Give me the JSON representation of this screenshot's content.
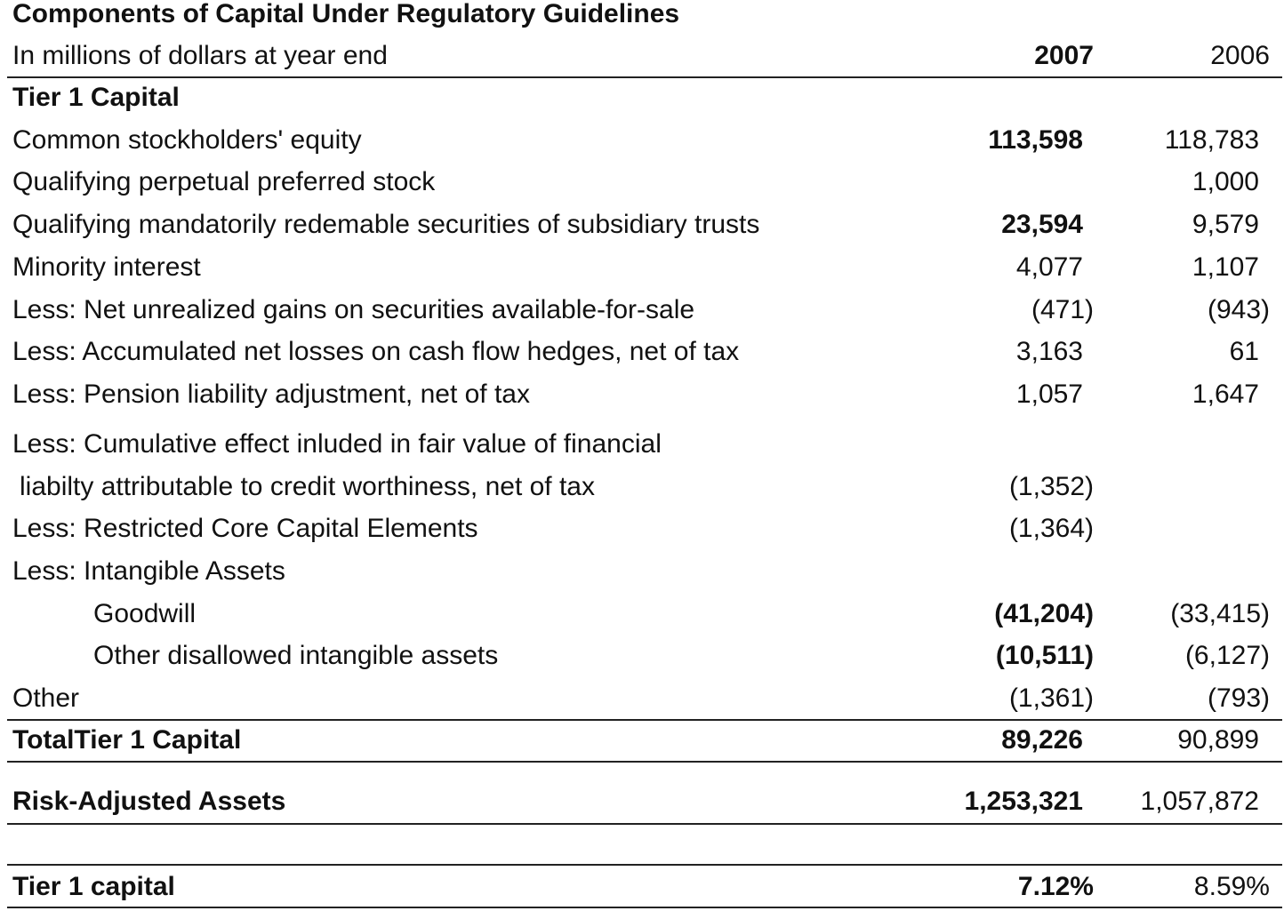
{
  "title": "Components of Capital Under Regulatory Guidelines",
  "subtitle": "In millions of dollars at year end",
  "columns": {
    "y2007": "2007",
    "y2006": "2006"
  },
  "tier1_header": "Tier 1 Capital",
  "rows": {
    "common_equity": {
      "label": "Common stockholders' equity",
      "v2007": "113,598",
      "v2006": "118,783"
    },
    "perpetual_preferred": {
      "label": "Qualifying perpetual preferred stock",
      "v2007": "",
      "v2006": "1,000"
    },
    "mandatorily_redeemable": {
      "label": "Qualifying mandatorily redemable securities of subsidiary trusts",
      "v2007": "23,594",
      "v2006": "9,579"
    },
    "minority_interest": {
      "label": "Minority interest",
      "v2007": "4,077",
      "v2006": "1,107"
    },
    "unrealized_gains": {
      "label": "Less: Net unrealized gains on securities available-for-sale",
      "v2007": "(471)",
      "v2006": "(943)"
    },
    "cash_flow_hedges": {
      "label": "Less: Accumulated net losses on cash flow hedges, net of tax",
      "v2007": "3,163",
      "v2006": "61"
    },
    "pension": {
      "label": "Less: Pension liability adjustment, net of tax",
      "v2007": "1,057",
      "v2006": "1,647"
    },
    "cumulative_effect": {
      "label_line1": "Less: Cumulative effect inluded in fair value of financial",
      "label_line2": "liabilty attributable to credit worthiness, net of tax",
      "v2007": "(1,352)",
      "v2006": ""
    },
    "restricted_core": {
      "label": "Less: Restricted Core Capital Elements",
      "v2007": "(1,364)",
      "v2006": ""
    },
    "intangible_header": {
      "label": "Less: Intangible Assets"
    },
    "goodwill": {
      "label": "Goodwill",
      "v2007": "(41,204)",
      "v2006": "(33,415)"
    },
    "other_intangibles": {
      "label": "Other disallowed intangible assets",
      "v2007": "(10,511)",
      "v2006": "(6,127)"
    },
    "other": {
      "label": "Other",
      "v2007": "(1,361)",
      "v2006": "(793)"
    },
    "total_tier1": {
      "label": "TotalTier 1 Capital",
      "v2007": "89,226",
      "v2006": "90,899"
    },
    "risk_adjusted": {
      "label": "Risk-Adjusted Assets",
      "v2007": "1,253,321",
      "v2006": "1,057,872"
    },
    "tier1_ratio": {
      "label": "Tier 1 capital",
      "v2007": "7.12%",
      "v2006": "8.59%"
    }
  }
}
